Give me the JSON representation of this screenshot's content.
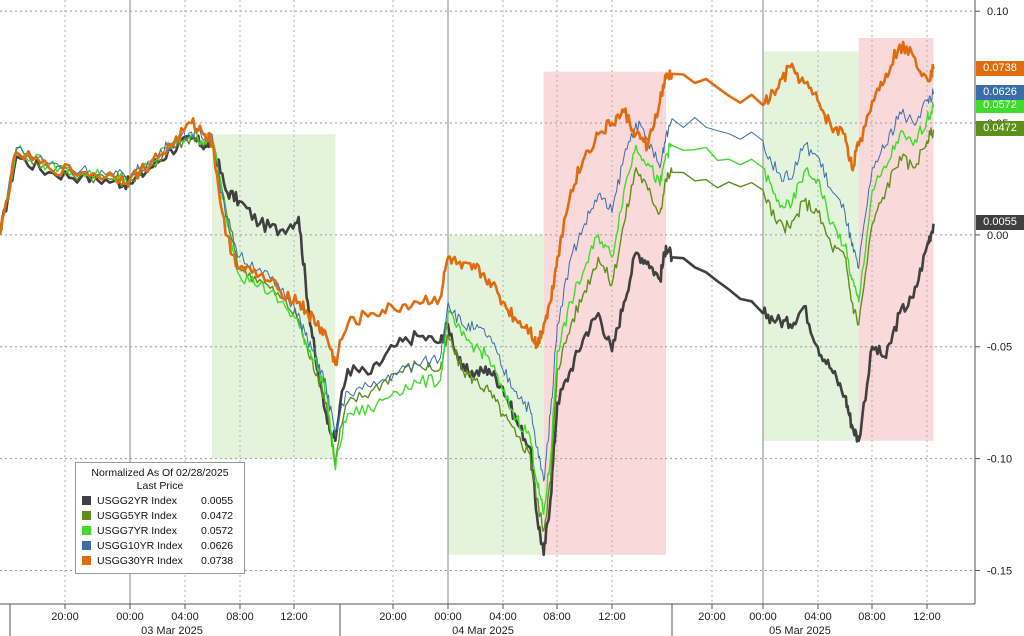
{
  "chart_data": {
    "type": "line",
    "legend": {
      "title": "Normalized As Of 02/28/2025",
      "subtitle": "Last Price",
      "position": "bottom-left"
    },
    "y_axis": {
      "ticks": [
        "0.10",
        "0.05",
        "0.00",
        "-0.05",
        "-0.10",
        "-0.15"
      ],
      "tick_values": [
        0.1,
        0.05,
        0.0,
        -0.05,
        -0.1,
        -0.15
      ],
      "range": [
        -0.165,
        0.105
      ],
      "side": "right"
    },
    "x_axis": {
      "time_ticks": [
        "20:00",
        "00:00",
        "04:00",
        "08:00",
        "12:00",
        "20:00",
        "00:00",
        "04:00",
        "08:00",
        "12:00",
        "20:00",
        "00:00",
        "04:00",
        "08:00",
        "12:00"
      ],
      "date_labels": [
        "03 Mar 2025",
        "04 Mar 2025",
        "05 Mar 2025"
      ]
    },
    "grid": true,
    "shaded_regions": [
      {
        "color": "green",
        "start": "03 Mar 06:00",
        "end": "03 Mar 16:30",
        "y_range": [
          -0.1,
          0.045
        ]
      },
      {
        "color": "green",
        "start": "04 Mar 00:00",
        "end": "04 Mar 07:00",
        "y_range": [
          -0.143,
          0.0
        ]
      },
      {
        "color": "red",
        "start": "04 Mar 07:00",
        "end": "04 Mar 16:30",
        "y_range": [
          -0.143,
          0.073
        ]
      },
      {
        "color": "green",
        "start": "05 Mar 00:00",
        "end": "05 Mar 07:00",
        "y_range": [
          -0.092,
          0.082
        ]
      },
      {
        "color": "red",
        "start": "05 Mar 07:00",
        "end": "05 Mar 12:30",
        "y_range": [
          -0.092,
          0.088
        ]
      }
    ],
    "series": [
      {
        "name": "USGG2YR Index",
        "last": "0.0055",
        "color": "#404040",
        "x": [
          "02 Mar 16:00",
          "02 Mar 17:00",
          "02 Mar 19:00",
          "02 Mar 21:00",
          "02 Mar 23:00",
          "03 Mar 00:00",
          "03 Mar 01:30",
          "03 Mar 03:00",
          "03 Mar 04:30",
          "03 Mar 05:30",
          "03 Mar 06:00",
          "03 Mar 07:00",
          "03 Mar 08:00",
          "03 Mar 09:30",
          "03 Mar 11:00",
          "03 Mar 12:30",
          "03 Mar 13:30",
          "03 Mar 14:30",
          "03 Mar 15:30",
          "03 Mar 16:30",
          "03 Mar 17:30",
          "03 Mar 19:00",
          "03 Mar 20:30",
          "03 Mar 22:00",
          "03 Mar 23:30",
          "04 Mar 00:00",
          "04 Mar 01:00",
          "04 Mar 02:00",
          "04 Mar 03:00",
          "04 Mar 04:00",
          "04 Mar 05:00",
          "04 Mar 06:00",
          "04 Mar 06:30",
          "04 Mar 07:00",
          "04 Mar 07:30",
          "04 Mar 08:00",
          "04 Mar 09:00",
          "04 Mar 10:00",
          "04 Mar 11:00",
          "04 Mar 12:00",
          "04 Mar 13:00",
          "04 Mar 14:00",
          "04 Mar 15:00",
          "04 Mar 16:00",
          "04 Mar 16:30",
          "04 Mar 17:00",
          "05 Mar 00:00",
          "05 Mar 01:00",
          "05 Mar 02:00",
          "05 Mar 03:00",
          "05 Mar 04:00",
          "05 Mar 05:00",
          "05 Mar 06:00",
          "05 Mar 06:30",
          "05 Mar 07:00",
          "05 Mar 08:00",
          "05 Mar 09:00",
          "05 Mar 10:00",
          "05 Mar 11:00",
          "05 Mar 12:00",
          "05 Mar 12:30"
        ],
        "values": [
          0.0,
          0.035,
          0.028,
          0.026,
          0.024,
          0.023,
          0.03,
          0.038,
          0.043,
          0.04,
          0.042,
          0.02,
          0.015,
          0.005,
          0.002,
          0.008,
          -0.03,
          -0.06,
          -0.08,
          -0.092,
          -0.06,
          -0.062,
          -0.05,
          -0.045,
          -0.048,
          -0.04,
          -0.06,
          -0.062,
          -0.06,
          -0.068,
          -0.083,
          -0.095,
          -0.125,
          -0.143,
          -0.118,
          -0.075,
          -0.06,
          -0.045,
          -0.035,
          -0.052,
          -0.03,
          -0.008,
          -0.012,
          -0.02,
          -0.005,
          -0.01,
          -0.035,
          -0.038,
          -0.04,
          -0.032,
          -0.05,
          -0.06,
          -0.072,
          -0.085,
          -0.092,
          -0.05,
          -0.055,
          -0.035,
          -0.028,
          -0.005,
          0.005
        ]
      },
      {
        "name": "USGG5YR Index",
        "last": "0.0472",
        "color": "#5f8f1b",
        "x": [
          "02 Mar 16:00",
          "02 Mar 17:00",
          "02 Mar 19:00",
          "02 Mar 21:00",
          "02 Mar 23:00",
          "03 Mar 00:00",
          "03 Mar 01:30",
          "03 Mar 03:00",
          "03 Mar 04:30",
          "03 Mar 05:30",
          "03 Mar 06:00",
          "03 Mar 07:00",
          "03 Mar 08:00",
          "03 Mar 09:30",
          "03 Mar 11:00",
          "03 Mar 12:30",
          "03 Mar 13:30",
          "03 Mar 14:30",
          "03 Mar 15:30",
          "03 Mar 16:30",
          "03 Mar 17:30",
          "03 Mar 19:00",
          "03 Mar 20:30",
          "03 Mar 22:00",
          "03 Mar 23:30",
          "04 Mar 00:00",
          "04 Mar 01:00",
          "04 Mar 02:00",
          "04 Mar 03:00",
          "04 Mar 04:00",
          "04 Mar 05:00",
          "04 Mar 06:00",
          "04 Mar 06:30",
          "04 Mar 07:00",
          "04 Mar 07:30",
          "04 Mar 08:00",
          "04 Mar 09:00",
          "04 Mar 10:00",
          "04 Mar 11:00",
          "04 Mar 12:00",
          "04 Mar 13:00",
          "04 Mar 14:00",
          "04 Mar 15:00",
          "04 Mar 16:00",
          "04 Mar 16:30",
          "04 Mar 17:00",
          "05 Mar 00:00",
          "05 Mar 01:00",
          "05 Mar 02:00",
          "05 Mar 03:00",
          "05 Mar 04:00",
          "05 Mar 05:00",
          "05 Mar 06:00",
          "05 Mar 06:30",
          "05 Mar 07:00",
          "05 Mar 08:00",
          "05 Mar 09:00",
          "05 Mar 10:00",
          "05 Mar 11:00",
          "05 Mar 12:00",
          "05 Mar 12:30"
        ],
        "values": [
          0.0,
          0.037,
          0.03,
          0.027,
          0.025,
          0.024,
          0.031,
          0.039,
          0.044,
          0.041,
          0.043,
          0.012,
          -0.015,
          -0.02,
          -0.028,
          -0.038,
          -0.052,
          -0.062,
          -0.075,
          -0.102,
          -0.075,
          -0.07,
          -0.062,
          -0.058,
          -0.06,
          -0.045,
          -0.06,
          -0.065,
          -0.07,
          -0.08,
          -0.09,
          -0.098,
          -0.118,
          -0.132,
          -0.11,
          -0.06,
          -0.04,
          -0.025,
          -0.01,
          -0.022,
          0.005,
          0.03,
          0.02,
          0.01,
          0.025,
          0.028,
          0.02,
          0.005,
          0.003,
          0.015,
          0.01,
          -0.005,
          -0.01,
          -0.03,
          -0.04,
          0.005,
          0.02,
          0.035,
          0.03,
          0.042,
          0.047
        ]
      },
      {
        "name": "USGG7YR Index",
        "last": "0.0572",
        "color": "#3fdc2a",
        "x": [
          "02 Mar 16:00",
          "02 Mar 17:00",
          "02 Mar 19:00",
          "02 Mar 21:00",
          "02 Mar 23:00",
          "03 Mar 00:00",
          "03 Mar 01:30",
          "03 Mar 03:00",
          "03 Mar 04:30",
          "03 Mar 05:30",
          "03 Mar 06:00",
          "03 Mar 07:00",
          "03 Mar 08:00",
          "03 Mar 09:30",
          "03 Mar 11:00",
          "03 Mar 12:30",
          "03 Mar 13:30",
          "03 Mar 14:30",
          "03 Mar 15:30",
          "03 Mar 16:30",
          "03 Mar 17:30",
          "03 Mar 19:00",
          "03 Mar 20:30",
          "03 Mar 22:00",
          "03 Mar 23:30",
          "04 Mar 00:00",
          "04 Mar 01:00",
          "04 Mar 02:00",
          "04 Mar 03:00",
          "04 Mar 04:00",
          "04 Mar 05:00",
          "04 Mar 06:00",
          "04 Mar 06:30",
          "04 Mar 07:00",
          "04 Mar 07:30",
          "04 Mar 08:00",
          "04 Mar 09:00",
          "04 Mar 10:00",
          "04 Mar 11:00",
          "04 Mar 12:00",
          "04 Mar 13:00",
          "04 Mar 14:00",
          "04 Mar 15:00",
          "04 Mar 16:00",
          "04 Mar 16:30",
          "04 Mar 17:00",
          "05 Mar 00:00",
          "05 Mar 01:00",
          "05 Mar 02:00",
          "05 Mar 03:00",
          "05 Mar 04:00",
          "05 Mar 05:00",
          "05 Mar 06:00",
          "05 Mar 06:30",
          "05 Mar 07:00",
          "05 Mar 08:00",
          "05 Mar 09:00",
          "05 Mar 10:00",
          "05 Mar 11:00",
          "05 Mar 12:00",
          "05 Mar 12:30"
        ],
        "values": [
          0.0,
          0.038,
          0.031,
          0.028,
          0.026,
          0.025,
          0.032,
          0.04,
          0.045,
          0.042,
          0.044,
          0.01,
          -0.018,
          -0.022,
          -0.03,
          -0.04,
          -0.05,
          -0.058,
          -0.07,
          -0.105,
          -0.08,
          -0.078,
          -0.07,
          -0.066,
          -0.065,
          -0.035,
          -0.045,
          -0.05,
          -0.055,
          -0.07,
          -0.082,
          -0.09,
          -0.11,
          -0.125,
          -0.1,
          -0.052,
          -0.03,
          -0.015,
          0.0,
          -0.01,
          0.02,
          0.04,
          0.032,
          0.022,
          0.036,
          0.04,
          0.03,
          0.015,
          0.012,
          0.028,
          0.025,
          0.005,
          -0.005,
          -0.02,
          -0.03,
          0.02,
          0.03,
          0.045,
          0.04,
          0.052,
          0.057
        ]
      },
      {
        "name": "USGG10YR Index",
        "last": "0.0626",
        "color": "#3b6ea8",
        "x": [
          "02 Mar 16:00",
          "02 Mar 17:00",
          "02 Mar 19:00",
          "02 Mar 21:00",
          "02 Mar 23:00",
          "03 Mar 00:00",
          "03 Mar 01:30",
          "03 Mar 03:00",
          "03 Mar 04:30",
          "03 Mar 05:30",
          "03 Mar 06:00",
          "03 Mar 07:00",
          "03 Mar 08:00",
          "03 Mar 09:30",
          "03 Mar 11:00",
          "03 Mar 12:30",
          "03 Mar 13:30",
          "03 Mar 14:30",
          "03 Mar 15:30",
          "03 Mar 16:30",
          "03 Mar 17:30",
          "03 Mar 19:00",
          "03 Mar 20:30",
          "03 Mar 22:00",
          "03 Mar 23:30",
          "04 Mar 00:00",
          "04 Mar 01:00",
          "04 Mar 02:00",
          "04 Mar 03:00",
          "04 Mar 04:00",
          "04 Mar 05:00",
          "04 Mar 06:00",
          "04 Mar 06:30",
          "04 Mar 07:00",
          "04 Mar 07:30",
          "04 Mar 08:00",
          "04 Mar 09:00",
          "04 Mar 10:00",
          "04 Mar 11:00",
          "04 Mar 12:00",
          "04 Mar 13:00",
          "04 Mar 14:00",
          "04 Mar 15:00",
          "04 Mar 16:00",
          "04 Mar 16:30",
          "04 Mar 17:00",
          "05 Mar 00:00",
          "05 Mar 01:00",
          "05 Mar 02:00",
          "05 Mar 03:00",
          "05 Mar 04:00",
          "05 Mar 05:00",
          "05 Mar 06:00",
          "05 Mar 06:30",
          "05 Mar 07:00",
          "05 Mar 08:00",
          "05 Mar 09:00",
          "05 Mar 10:00",
          "05 Mar 11:00",
          "05 Mar 12:00",
          "05 Mar 12:30"
        ],
        "values": [
          0.0,
          0.039,
          0.032,
          0.029,
          0.027,
          0.026,
          0.033,
          0.041,
          0.046,
          0.043,
          0.045,
          0.008,
          -0.01,
          -0.015,
          -0.025,
          -0.035,
          -0.048,
          -0.055,
          -0.068,
          -0.09,
          -0.07,
          -0.068,
          -0.062,
          -0.058,
          -0.055,
          -0.03,
          -0.04,
          -0.042,
          -0.045,
          -0.06,
          -0.07,
          -0.078,
          -0.095,
          -0.11,
          -0.08,
          -0.04,
          -0.01,
          0.005,
          0.018,
          0.01,
          0.035,
          0.05,
          0.042,
          0.03,
          0.045,
          0.052,
          0.042,
          0.028,
          0.025,
          0.04,
          0.035,
          0.02,
          0.01,
          -0.005,
          -0.015,
          0.03,
          0.04,
          0.055,
          0.05,
          0.06,
          0.063
        ]
      },
      {
        "name": "USGG30YR Index",
        "last": "0.0738",
        "color": "#e06c12",
        "x": [
          "02 Mar 16:00",
          "02 Mar 17:00",
          "02 Mar 19:00",
          "02 Mar 21:00",
          "02 Mar 23:00",
          "03 Mar 00:00",
          "03 Mar 01:30",
          "03 Mar 03:00",
          "03 Mar 04:30",
          "03 Mar 05:30",
          "03 Mar 06:00",
          "03 Mar 07:00",
          "03 Mar 08:00",
          "03 Mar 09:30",
          "03 Mar 11:00",
          "03 Mar 12:30",
          "03 Mar 13:30",
          "03 Mar 14:30",
          "03 Mar 15:30",
          "03 Mar 16:30",
          "03 Mar 17:30",
          "03 Mar 19:00",
          "03 Mar 20:30",
          "03 Mar 22:00",
          "03 Mar 23:30",
          "04 Mar 00:00",
          "04 Mar 01:00",
          "04 Mar 02:00",
          "04 Mar 03:00",
          "04 Mar 04:00",
          "04 Mar 05:00",
          "04 Mar 06:00",
          "04 Mar 06:30",
          "04 Mar 07:00",
          "04 Mar 07:30",
          "04 Mar 08:00",
          "04 Mar 09:00",
          "04 Mar 10:00",
          "04 Mar 11:00",
          "04 Mar 12:00",
          "04 Mar 13:00",
          "04 Mar 14:00",
          "04 Mar 15:00",
          "04 Mar 16:00",
          "04 Mar 16:30",
          "04 Mar 17:00",
          "05 Mar 00:00",
          "05 Mar 01:00",
          "05 Mar 02:00",
          "05 Mar 03:00",
          "05 Mar 04:00",
          "05 Mar 05:00",
          "05 Mar 06:00",
          "05 Mar 06:30",
          "05 Mar 07:00",
          "05 Mar 08:00",
          "05 Mar 09:00",
          "05 Mar 10:00",
          "05 Mar 11:00",
          "05 Mar 12:00",
          "05 Mar 12:30"
        ],
        "values": [
          0.0,
          0.037,
          0.03,
          0.028,
          0.026,
          0.025,
          0.032,
          0.04,
          0.05,
          0.045,
          0.042,
          0.0,
          -0.015,
          -0.018,
          -0.025,
          -0.03,
          -0.035,
          -0.04,
          -0.045,
          -0.058,
          -0.04,
          -0.035,
          -0.033,
          -0.03,
          -0.028,
          -0.01,
          -0.015,
          -0.015,
          -0.02,
          -0.03,
          -0.038,
          -0.042,
          -0.05,
          -0.04,
          -0.03,
          -0.01,
          0.02,
          0.035,
          0.045,
          0.05,
          0.055,
          0.045,
          0.04,
          0.06,
          0.07,
          0.072,
          0.058,
          0.065,
          0.075,
          0.068,
          0.06,
          0.048,
          0.045,
          0.03,
          0.04,
          0.06,
          0.072,
          0.085,
          0.08,
          0.07,
          0.074
        ]
      }
    ]
  }
}
